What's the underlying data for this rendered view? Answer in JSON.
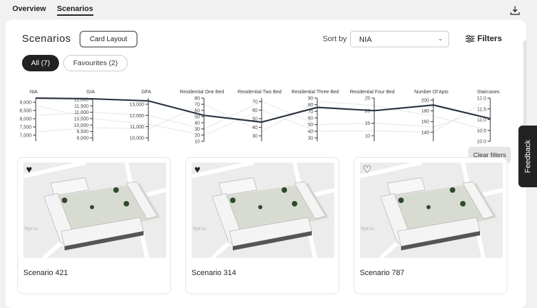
{
  "nav": {
    "tabs": [
      {
        "label": "Overview"
      },
      {
        "label": "Scenarios"
      }
    ],
    "download_icon": "download-icon"
  },
  "header": {
    "title": "Scenarios",
    "card_layout": "Card Layout",
    "sort_label": "Sort by",
    "sort_value": "NIA",
    "filters": "Filters"
  },
  "pills": [
    {
      "label": "All (7)"
    },
    {
      "label": "Favourites (2)"
    }
  ],
  "clear_filters": "Clear filters",
  "feedback": "Feedback",
  "colors": {
    "accent": "#222222",
    "line": "#2b3441"
  },
  "chart_data": {
    "type": "parallel-coordinates",
    "axes": [
      {
        "name": "NIA",
        "domain": [
          6625,
          9250
        ],
        "ticks": [
          7000,
          7500,
          8000,
          8500,
          9000
        ],
        "labels": [
          "7,000",
          "7,500",
          "8,000",
          "8,500",
          "9,000"
        ]
      },
      {
        "name": "GIA",
        "domain": [
          8733,
          12107
        ],
        "ticks": [
          9000,
          9500,
          10000,
          10500,
          11000,
          11500,
          12000
        ],
        "labels": [
          "9,000",
          "9,500",
          "10,000",
          "10,500",
          "11,000",
          "11,500",
          "12,000"
        ]
      },
      {
        "name": "GFA",
        "domain": [
          9690,
          13550
        ],
        "ticks": [
          10000,
          11000,
          12000,
          13000
        ],
        "labels": [
          "10,000",
          "11,000",
          "12,000",
          "13,000"
        ]
      },
      {
        "name": "Residential One Bed",
        "domain": [
          10,
          80
        ],
        "ticks": [
          10,
          20,
          30,
          40,
          50,
          60,
          70,
          80
        ],
        "labels": [
          "10",
          "20",
          "30",
          "40",
          "50",
          "60",
          "70",
          "80"
        ]
      },
      {
        "name": "Residential Two Bed",
        "domain": [
          23.6,
          74
        ],
        "ticks": [
          30,
          40,
          50,
          60,
          70
        ],
        "labels": [
          "30",
          "40",
          "50",
          "60",
          "70"
        ]
      },
      {
        "name": "Residential Three Bed",
        "domain": [
          24.8,
          90
        ],
        "ticks": [
          30,
          40,
          50,
          60,
          70,
          80,
          90
        ],
        "labels": [
          "30",
          "40",
          "50",
          "60",
          "70",
          "80",
          "90"
        ]
      },
      {
        "name": "Residential Four Bed",
        "domain": [
          7.8,
          25
        ],
        "ticks": [
          10,
          15,
          20,
          25
        ],
        "labels": [
          "10",
          "15",
          "20",
          "25"
        ]
      },
      {
        "name": "Number Of Apts",
        "domain": [
          123,
          204
        ],
        "ticks": [
          140,
          160,
          180,
          200
        ],
        "labels": [
          "140",
          "160",
          "180",
          "200"
        ]
      },
      {
        "name": "Staircases",
        "domain": [
          10,
          12
        ],
        "ticks": [
          10,
          10.5,
          11,
          11.5,
          12
        ],
        "labels": [
          "10.0",
          "10.5",
          "11.0",
          "11.5",
          "12.0"
        ]
      }
    ],
    "highlighted": {
      "name": "Scenario 421",
      "values": [
        9250,
        12050,
        13300,
        52,
        46,
        76,
        20,
        191,
        11.05
      ]
    },
    "others": [
      {
        "values": [
          8200,
          11000,
          12000,
          30,
          70,
          50,
          15,
          150,
          11.5
        ]
      },
      {
        "values": [
          7200,
          9800,
          10800,
          70,
          35,
          85,
          22,
          170,
          10.5
        ]
      },
      {
        "values": [
          8800,
          10500,
          11200,
          20,
          60,
          40,
          12,
          140,
          12
        ]
      }
    ]
  },
  "cards": [
    {
      "name": "Scenario 421",
      "favourite": true
    },
    {
      "name": "Scenario 314",
      "favourite": true
    },
    {
      "name": "Scenario 787",
      "favourite": false
    }
  ],
  "map_label": "Nya Lu"
}
